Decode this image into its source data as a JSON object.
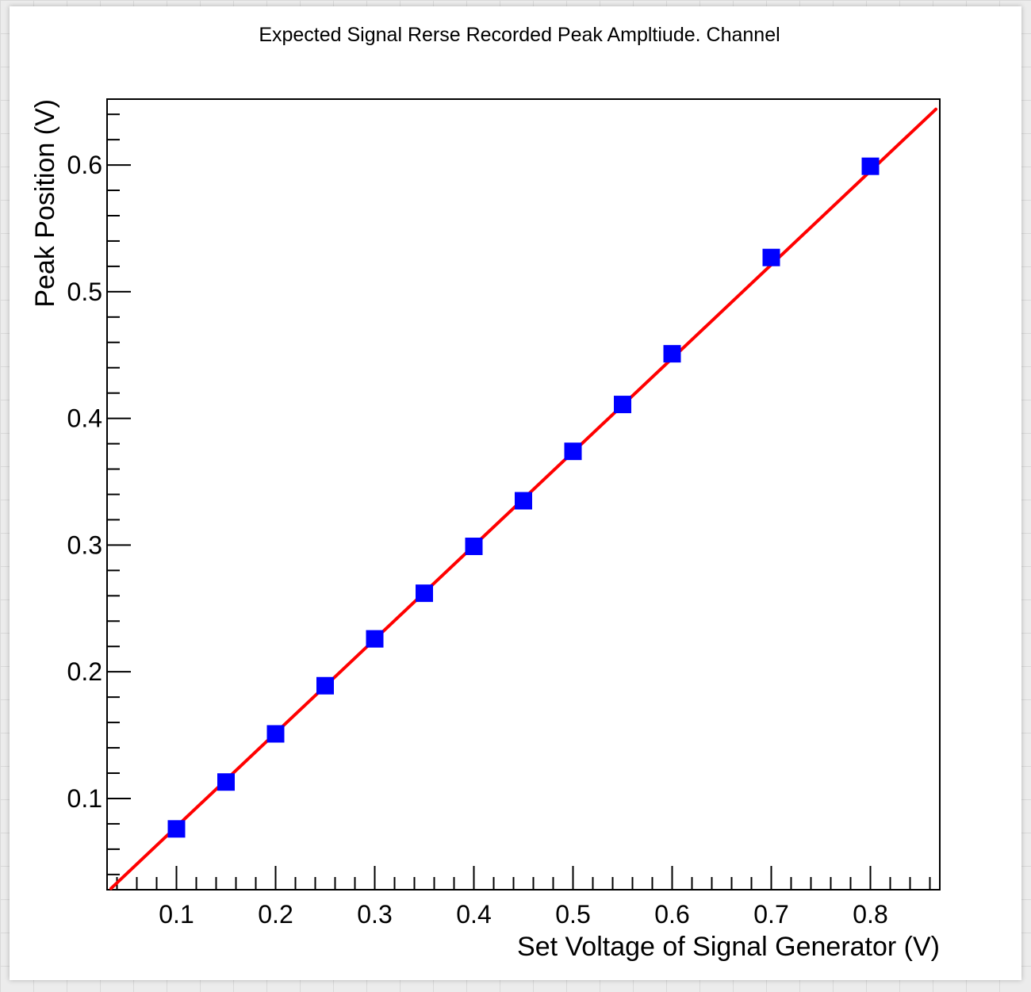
{
  "chart_data": {
    "type": "scatter",
    "title": "Expected Signal Rerse Recorded Peak Ampltiude. Channel",
    "xlabel": "Set Voltage of Signal Generator (V)",
    "ylabel": "Peak Position (V)",
    "xlim": [
      0.03,
      0.87
    ],
    "ylim": [
      0.028,
      0.652
    ],
    "x_ticks": [
      "0.1",
      "0.2",
      "0.3",
      "0.4",
      "0.5",
      "0.6",
      "0.7",
      "0.8"
    ],
    "y_ticks": [
      "0.1",
      "0.2",
      "0.3",
      "0.4",
      "0.5",
      "0.6"
    ],
    "x_tick_values": [
      0.1,
      0.2,
      0.3,
      0.4,
      0.5,
      0.6,
      0.7,
      0.8
    ],
    "y_tick_values": [
      0.1,
      0.2,
      0.3,
      0.4,
      0.5,
      0.6
    ],
    "grid": false,
    "series": [
      {
        "kind": "points",
        "marker": "square",
        "color": "#0000ff",
        "x": [
          0.1,
          0.15,
          0.2,
          0.25,
          0.3,
          0.35,
          0.4,
          0.45,
          0.5,
          0.55,
          0.6,
          0.7,
          0.8
        ],
        "y": [
          0.076,
          0.113,
          0.151,
          0.189,
          0.226,
          0.262,
          0.299,
          0.335,
          0.374,
          0.411,
          0.451,
          0.527,
          0.599
        ]
      },
      {
        "kind": "fit-line",
        "color": "#ff0000",
        "x": [
          0.034,
          0.866
        ],
        "y": [
          0.029,
          0.644
        ]
      }
    ]
  }
}
